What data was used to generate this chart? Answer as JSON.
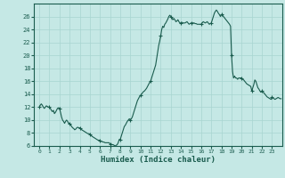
{
  "xlabel": "Humidex (Indice chaleur)",
  "background_color": "#c5e8e5",
  "grid_color": "#a8d5d0",
  "line_color": "#1a5c4e",
  "xlim": [
    -0.5,
    24
  ],
  "ylim": [
    6,
    28
  ],
  "yticks": [
    6,
    8,
    10,
    12,
    14,
    16,
    18,
    20,
    22,
    24,
    26
  ],
  "xticks": [
    0,
    1,
    2,
    3,
    4,
    5,
    6,
    7,
    8,
    9,
    10,
    11,
    12,
    13,
    14,
    15,
    16,
    17,
    18,
    19,
    20,
    21,
    22,
    23
  ],
  "x": [
    0.0,
    0.1,
    0.2,
    0.3,
    0.4,
    0.5,
    0.6,
    0.7,
    0.8,
    0.9,
    1.0,
    1.1,
    1.2,
    1.3,
    1.4,
    1.5,
    1.6,
    1.7,
    1.8,
    1.9,
    2.0,
    2.1,
    2.2,
    2.3,
    2.4,
    2.5,
    2.6,
    2.7,
    2.8,
    2.9,
    3.0,
    3.1,
    3.2,
    3.3,
    3.4,
    3.5,
    3.6,
    3.7,
    3.8,
    3.9,
    4.0,
    4.1,
    4.2,
    4.3,
    4.4,
    4.5,
    4.6,
    4.7,
    4.8,
    4.9,
    5.0,
    5.1,
    5.2,
    5.3,
    5.4,
    5.5,
    5.6,
    5.7,
    5.8,
    5.9,
    6.0,
    6.1,
    6.2,
    6.3,
    6.4,
    6.5,
    6.6,
    6.7,
    6.8,
    6.9,
    7.0,
    7.1,
    7.2,
    7.3,
    7.4,
    7.5,
    7.6,
    7.7,
    7.8,
    7.9,
    8.0,
    8.1,
    8.2,
    8.3,
    8.4,
    8.5,
    8.6,
    8.7,
    8.8,
    8.9,
    9.0,
    9.1,
    9.2,
    9.3,
    9.4,
    9.5,
    9.6,
    9.7,
    9.8,
    9.9,
    10.0,
    10.1,
    10.2,
    10.3,
    10.4,
    10.5,
    10.6,
    10.7,
    10.8,
    10.9,
    11.0,
    11.1,
    11.2,
    11.3,
    11.4,
    11.5,
    11.6,
    11.7,
    11.8,
    11.9,
    12.0,
    12.1,
    12.2,
    12.3,
    12.4,
    12.5,
    12.6,
    12.7,
    12.8,
    12.9,
    13.0,
    13.1,
    13.2,
    13.3,
    13.4,
    13.5,
    13.6,
    13.7,
    13.8,
    13.9,
    14.0,
    14.1,
    14.2,
    14.3,
    14.4,
    14.5,
    14.6,
    14.7,
    14.8,
    14.9,
    15.0,
    15.1,
    15.2,
    15.3,
    15.4,
    15.5,
    15.6,
    15.7,
    15.8,
    15.9,
    16.0,
    16.1,
    16.2,
    16.3,
    16.4,
    16.5,
    16.6,
    16.7,
    16.8,
    16.9,
    17.0,
    17.1,
    17.2,
    17.3,
    17.4,
    17.5,
    17.6,
    17.7,
    17.8,
    17.9,
    18.0,
    18.1,
    18.2,
    18.3,
    18.4,
    18.5,
    18.6,
    18.7,
    18.8,
    18.9,
    19.0,
    19.1,
    19.2,
    19.3,
    19.4,
    19.5,
    19.6,
    19.7,
    19.8,
    19.9,
    20.0,
    20.1,
    20.2,
    20.3,
    20.4,
    20.5,
    20.6,
    20.7,
    20.8,
    20.9,
    21.0,
    21.1,
    21.2,
    21.3,
    21.4,
    21.5,
    21.6,
    21.7,
    21.8,
    21.9,
    22.0,
    22.1,
    22.2,
    22.3,
    22.4,
    22.5,
    22.6,
    22.7,
    22.8,
    22.9,
    23.0,
    23.1,
    23.2,
    23.3,
    23.4,
    23.5,
    23.6,
    23.7,
    23.8,
    23.9
  ],
  "y": [
    12.0,
    12.3,
    12.5,
    12.3,
    12.0,
    11.8,
    12.0,
    12.2,
    12.1,
    12.0,
    12.0,
    11.8,
    11.5,
    11.3,
    11.5,
    11.0,
    11.2,
    11.5,
    11.8,
    11.9,
    11.8,
    11.2,
    10.5,
    10.0,
    9.8,
    9.5,
    9.8,
    10.0,
    9.8,
    9.5,
    9.5,
    9.3,
    9.0,
    8.8,
    8.7,
    8.5,
    8.6,
    8.8,
    8.9,
    8.8,
    8.8,
    8.6,
    8.5,
    8.4,
    8.3,
    8.2,
    8.1,
    8.0,
    7.9,
    7.9,
    7.8,
    7.7,
    7.5,
    7.4,
    7.3,
    7.2,
    7.1,
    7.0,
    6.9,
    6.9,
    6.8,
    6.7,
    6.7,
    6.6,
    6.6,
    6.5,
    6.5,
    6.5,
    6.5,
    6.5,
    6.3,
    6.3,
    6.2,
    6.2,
    6.1,
    6.0,
    6.1,
    6.2,
    6.5,
    7.0,
    7.0,
    7.5,
    8.0,
    8.5,
    9.0,
    9.2,
    9.5,
    9.8,
    10.0,
    10.2,
    10.0,
    10.2,
    10.5,
    11.0,
    11.5,
    12.0,
    12.5,
    13.0,
    13.3,
    13.6,
    13.8,
    14.0,
    14.2,
    14.4,
    14.5,
    14.7,
    14.9,
    15.2,
    15.5,
    15.8,
    16.0,
    16.5,
    17.0,
    17.5,
    18.0,
    18.5,
    19.5,
    20.5,
    21.5,
    22.2,
    23.0,
    24.0,
    24.5,
    24.3,
    24.8,
    25.0,
    25.3,
    25.6,
    26.0,
    26.2,
    26.0,
    25.8,
    25.5,
    25.7,
    25.5,
    25.2,
    25.3,
    25.5,
    25.2,
    25.0,
    25.0,
    25.1,
    25.0,
    25.0,
    25.0,
    25.1,
    25.2,
    25.0,
    24.8,
    24.9,
    25.0,
    25.0,
    25.0,
    25.0,
    24.9,
    24.9,
    24.8,
    24.8,
    24.8,
    24.8,
    24.8,
    25.0,
    25.2,
    25.1,
    25.0,
    25.1,
    25.2,
    25.0,
    24.8,
    24.9,
    25.0,
    25.5,
    26.0,
    26.5,
    26.8,
    27.0,
    26.8,
    26.5,
    26.3,
    26.0,
    26.3,
    26.2,
    26.0,
    25.8,
    25.6,
    25.4,
    25.2,
    25.0,
    24.8,
    24.5,
    20.0,
    17.5,
    16.5,
    16.8,
    16.5,
    16.5,
    16.3,
    16.5,
    16.5,
    16.5,
    16.5,
    16.3,
    16.2,
    16.0,
    15.8,
    15.6,
    15.5,
    15.4,
    15.3,
    15.2,
    14.5,
    15.0,
    15.5,
    16.2,
    16.0,
    15.5,
    15.0,
    14.8,
    14.5,
    14.3,
    14.5,
    14.3,
    14.2,
    14.0,
    13.8,
    13.6,
    13.5,
    13.4,
    13.3,
    13.2,
    13.5,
    13.4,
    13.3,
    13.2,
    13.3,
    13.4,
    13.5,
    13.4,
    13.3,
    13.3
  ],
  "marker_x": [
    0,
    1,
    2,
    3,
    4,
    5,
    6,
    7,
    8,
    9,
    10,
    11,
    12,
    13,
    14,
    15,
    16,
    17,
    18,
    19,
    20,
    21,
    22,
    23
  ],
  "marker_y": [
    12.0,
    12.0,
    11.8,
    9.5,
    8.8,
    7.8,
    6.8,
    6.3,
    7.0,
    10.0,
    13.8,
    16.0,
    23.0,
    26.0,
    25.0,
    25.0,
    24.8,
    25.0,
    26.3,
    20.0,
    16.5,
    14.5,
    14.5,
    13.5
  ]
}
